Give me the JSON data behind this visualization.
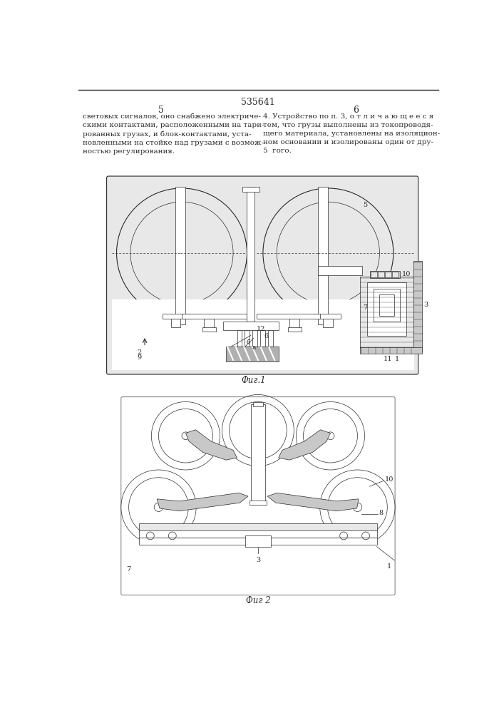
{
  "page_width": 7.07,
  "page_height": 10.0,
  "bg_color": "#ffffff",
  "patent_number": "535641",
  "col_left_num": "5",
  "col_right_num": "6",
  "text_left": "световых сигналов, оно снабжено электриче-\nскими контактами, расположенными на тари-\nрованных грузах, и блок-контактами, уста-\nновленными на стойке над грузами с возмож-\nностью регулирования.",
  "text_right": "4. Устройство по п. 3, о т л и ч а ю щ е е с я\nтем, что грузы выполнены из токопроводя-\nщего материала, установлены на изоляцион-\nном основании и изолированы один от дру-\n5  гого.",
  "fig1_label": "Фиг.1",
  "fig2_label": "Фиг 2",
  "line_color": "#2a2a2a",
  "gray_fill": "#c8c8c8",
  "light_gray": "#e8e8e8",
  "hatch_fill": "#b0b0b0"
}
